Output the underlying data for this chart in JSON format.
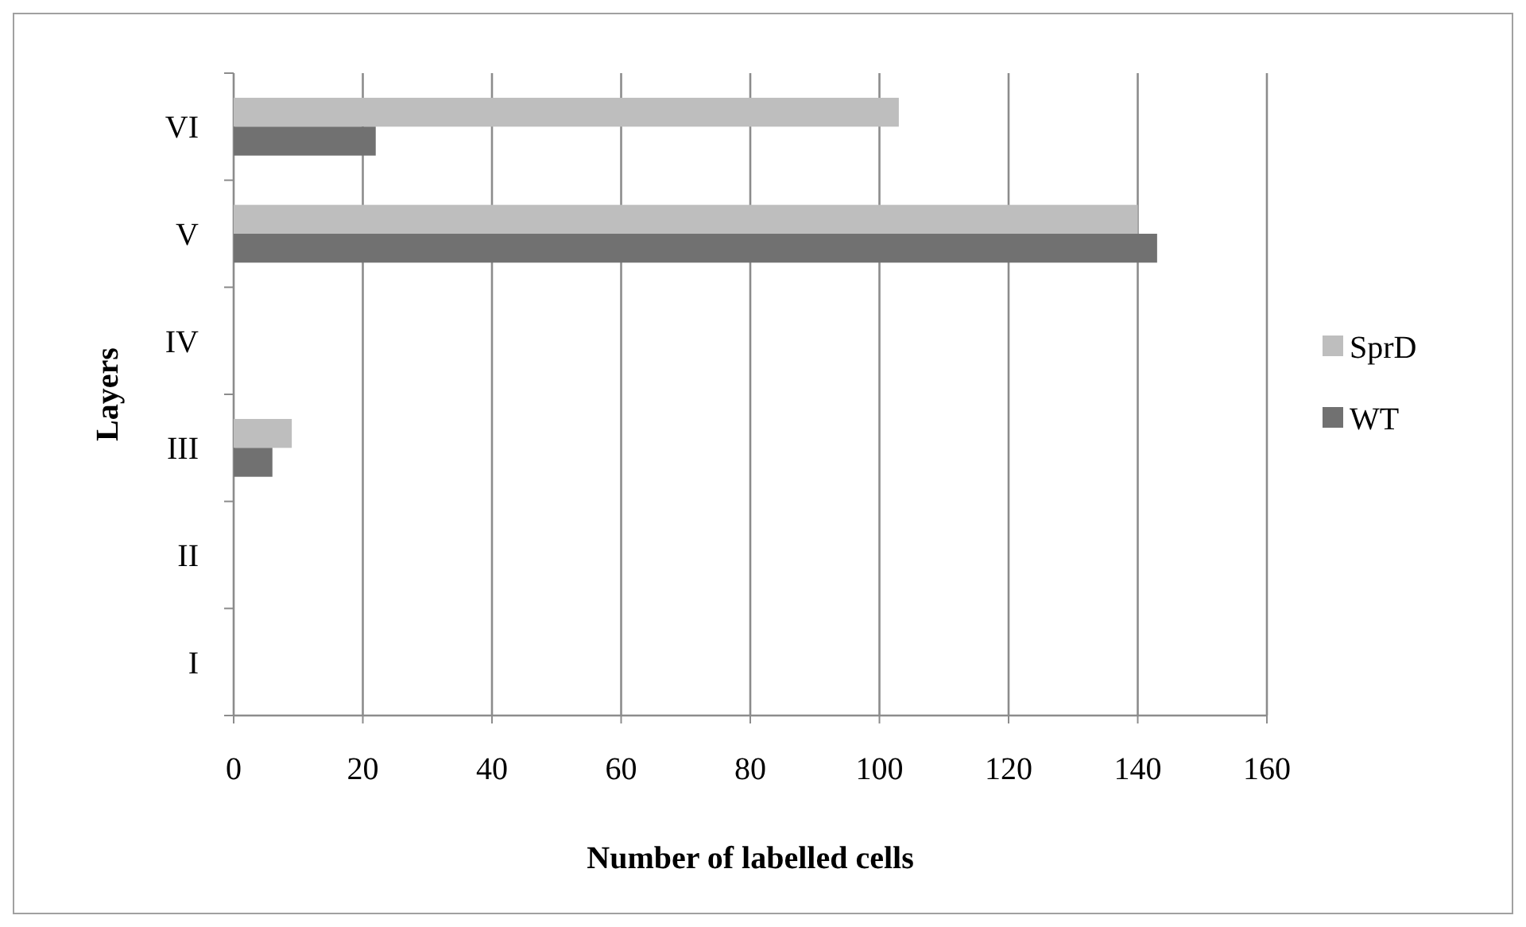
{
  "chart_data": {
    "type": "bar",
    "orientation": "horizontal",
    "xlabel": "Number of labelled cells",
    "ylabel": "Layers",
    "categories": [
      "VI",
      "V",
      "IV",
      "III",
      "II",
      "I"
    ],
    "series": [
      {
        "name": "SprD",
        "color": "#bebebe",
        "values": [
          103,
          140,
          0,
          9,
          0,
          0
        ]
      },
      {
        "name": "WT",
        "color": "#717171",
        "values": [
          22,
          143,
          0,
          6,
          0,
          0
        ]
      }
    ],
    "xlim": [
      0,
      160
    ],
    "xticks": [
      0,
      20,
      40,
      60,
      80,
      100,
      120,
      140,
      160
    ],
    "grid": "x",
    "legend": "right"
  }
}
